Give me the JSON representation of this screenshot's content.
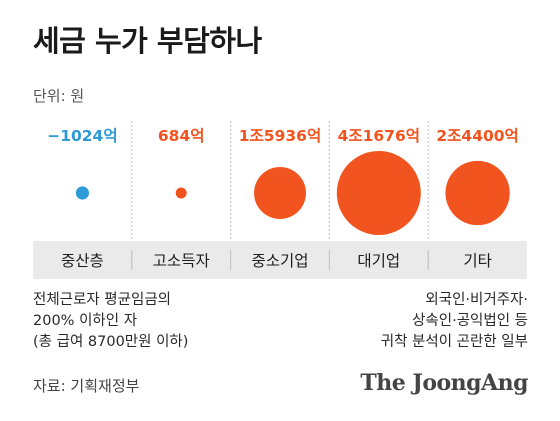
{
  "header": {
    "title": "세금 누가 부담하나",
    "unit": "단위: 원"
  },
  "chart_data": {
    "type": "bubble",
    "title": "세금 누가 부담하나",
    "unit": "원",
    "categories": [
      "중산층",
      "고소득자",
      "중소기업",
      "대기업",
      "기타"
    ],
    "values": [
      -1024,
      684,
      15936,
      41676,
      24400
    ],
    "value_labels": [
      "−1024억",
      "684억",
      "1조5936억",
      "4조1676억",
      "2조4400억"
    ],
    "colors": {
      "negative": "#2e9bd6",
      "positive": "#f1541e",
      "band": "#eaeaea",
      "divider": "#a8a8a8"
    }
  },
  "notes": {
    "left": [
      "전체근로자 평균임금의",
      "200% 이하인 자",
      "(총 급여 8700만원 이하)"
    ],
    "right": [
      "외국인·비거주자·",
      "상속인·공익법인 등",
      "귀착 분석이 곤란한 일부"
    ]
  },
  "footer": {
    "source": "자료: 기획재정부",
    "brand": "The JoongAng"
  }
}
